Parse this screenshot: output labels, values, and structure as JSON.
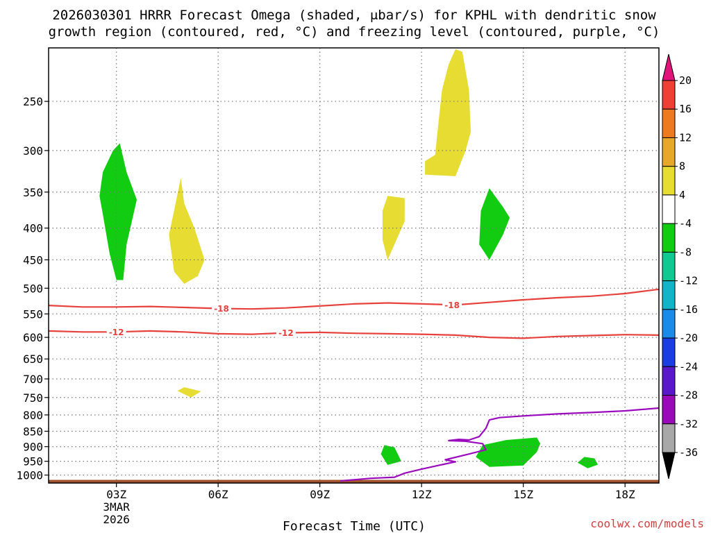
{
  "chart_data": {
    "type": "contour",
    "title_line1": "2026030301 HRRR Forecast Omega (shaded, μbar/s) for KPHL with dendritic snow",
    "title_line2": "growth region (contoured, red, °C) and freezing level (contoured, purple, °C)",
    "xlabel": "Forecast Time (UTC)",
    "credit": "coolwx.com/models",
    "x_range_hours": [
      1,
      19
    ],
    "y_axis": {
      "type": "log-pressure",
      "units": "hPa",
      "range": [
        1030,
        205
      ]
    },
    "x_ticks": [
      {
        "hour": 3,
        "label": "03Z",
        "sub1": "3MAR",
        "sub2": "2026"
      },
      {
        "hour": 6,
        "label": "06Z",
        "sub1": "",
        "sub2": ""
      },
      {
        "hour": 9,
        "label": "09Z",
        "sub1": "",
        "sub2": ""
      },
      {
        "hour": 12,
        "label": "12Z",
        "sub1": "",
        "sub2": ""
      },
      {
        "hour": 15,
        "label": "15Z",
        "sub1": "",
        "sub2": ""
      },
      {
        "hour": 18,
        "label": "18Z",
        "sub1": "",
        "sub2": ""
      }
    ],
    "y_ticks": [
      250,
      300,
      350,
      400,
      450,
      500,
      550,
      600,
      650,
      700,
      750,
      800,
      850,
      900,
      950,
      1000
    ],
    "y_tick_labels": [
      "250",
      "300",
      "350",
      "400",
      "450",
      "500",
      "550",
      "600",
      "650",
      "700",
      "750",
      "800",
      "850",
      "900",
      "950",
      "1000"
    ],
    "grid": true,
    "colorbar": {
      "placement": "right",
      "labels": [
        "20",
        "16",
        "12",
        "8",
        "4",
        "-4",
        "-8",
        "-12",
        "-16",
        "-20",
        "-24",
        "-28",
        "-32",
        "-36"
      ],
      "bins": [
        {
          "from": 20,
          "to": null,
          "color": "#e0147a"
        },
        {
          "from": 16,
          "to": 20,
          "color": "#ee4035"
        },
        {
          "from": 12,
          "to": 16,
          "color": "#ee7a20"
        },
        {
          "from": 8,
          "to": 12,
          "color": "#e6a72a"
        },
        {
          "from": 4,
          "to": 8,
          "color": "#e6dc32"
        },
        {
          "from": -4,
          "to": 4,
          "color": "#ffffff"
        },
        {
          "from": -8,
          "to": -4,
          "color": "#12cc12"
        },
        {
          "from": -12,
          "to": -8,
          "color": "#10c890"
        },
        {
          "from": -16,
          "to": -12,
          "color": "#14b4c8"
        },
        {
          "from": -20,
          "to": -16,
          "color": "#1c8ae8"
        },
        {
          "from": -24,
          "to": -20,
          "color": "#1a3ee0"
        },
        {
          "from": -28,
          "to": -24,
          "color": "#5a18c8"
        },
        {
          "from": -32,
          "to": -28,
          "color": "#9a0ab8"
        },
        {
          "from": -36,
          "to": -32,
          "color": "#a8a8a8"
        },
        {
          "from": null,
          "to": -36,
          "color": "#000000"
        }
      ]
    },
    "shaded_regions": [
      {
        "value_bin": "-8 to -4",
        "color": "#12cc12",
        "points": [
          [
            3.1,
            292
          ],
          [
            3.3,
            325
          ],
          [
            3.6,
            360
          ],
          [
            3.3,
            425
          ],
          [
            3.2,
            485
          ],
          [
            3.0,
            485
          ],
          [
            2.8,
            440
          ],
          [
            2.6,
            380
          ],
          [
            2.5,
            355
          ],
          [
            2.6,
            325
          ],
          [
            2.9,
            300
          ]
        ]
      },
      {
        "value_bin": "4 to 8",
        "color": "#e6dc32",
        "points": [
          [
            4.9,
            332
          ],
          [
            5.0,
            365
          ],
          [
            5.3,
            400
          ],
          [
            5.6,
            450
          ],
          [
            5.4,
            478
          ],
          [
            5.0,
            492
          ],
          [
            4.7,
            470
          ],
          [
            4.55,
            410
          ],
          [
            4.7,
            375
          ]
        ]
      },
      {
        "value_bin": "4 to 8",
        "color": "#e6dc32",
        "points": [
          [
            5.0,
            722
          ],
          [
            5.5,
            733
          ],
          [
            5.2,
            750
          ],
          [
            4.8,
            732
          ]
        ]
      },
      {
        "value_bin": "4 to 8",
        "color": "#e6dc32",
        "points": [
          [
            11.0,
            355
          ],
          [
            11.5,
            358
          ],
          [
            11.5,
            390
          ],
          [
            11.0,
            450
          ],
          [
            10.85,
            418
          ],
          [
            10.85,
            375
          ]
        ]
      },
      {
        "value_bin": "4 to 8",
        "color": "#e6dc32",
        "points": [
          [
            13.0,
            206
          ],
          [
            13.2,
            208
          ],
          [
            13.4,
            240
          ],
          [
            13.45,
            280
          ],
          [
            13.3,
            300
          ],
          [
            13.0,
            330
          ],
          [
            12.1,
            328
          ],
          [
            12.1,
            312
          ],
          [
            12.4,
            305
          ],
          [
            12.5,
            270
          ],
          [
            12.6,
            240
          ],
          [
            12.8,
            218
          ]
        ]
      },
      {
        "value_bin": "-8 to -4",
        "color": "#12cc12",
        "points": [
          [
            14.0,
            345
          ],
          [
            14.4,
            370
          ],
          [
            14.6,
            385
          ],
          [
            14.4,
            410
          ],
          [
            14.0,
            450
          ],
          [
            13.7,
            425
          ],
          [
            13.75,
            375
          ]
        ]
      },
      {
        "value_bin": "-8 to -4",
        "color": "#12cc12",
        "points": [
          [
            10.9,
            895
          ],
          [
            11.2,
            902
          ],
          [
            11.4,
            950
          ],
          [
            11.0,
            963
          ],
          [
            10.8,
            925
          ]
        ]
      },
      {
        "value_bin": "-8 to -4",
        "color": "#12cc12",
        "points": [
          [
            14.5,
            878
          ],
          [
            15.4,
            870
          ],
          [
            15.5,
            890
          ],
          [
            15.4,
            918
          ],
          [
            15.0,
            965
          ],
          [
            14.0,
            970
          ],
          [
            13.6,
            935
          ],
          [
            13.8,
            895
          ]
        ]
      },
      {
        "value_bin": "-8 to -4",
        "color": "#12cc12",
        "points": [
          [
            16.8,
            935
          ],
          [
            17.1,
            940
          ],
          [
            17.2,
            962
          ],
          [
            16.9,
            975
          ],
          [
            16.6,
            955
          ]
        ]
      }
    ],
    "contours": [
      {
        "variable": "temperature",
        "value": -18,
        "label": "-18",
        "color": "#e8403a",
        "points": [
          [
            1,
            533
          ],
          [
            2,
            536
          ],
          [
            3,
            536
          ],
          [
            4,
            535
          ],
          [
            5,
            537
          ],
          [
            6,
            539
          ],
          [
            7,
            540
          ],
          [
            8,
            538
          ],
          [
            9,
            534
          ],
          [
            10,
            530
          ],
          [
            11,
            528
          ],
          [
            12,
            530
          ],
          [
            13,
            532
          ],
          [
            14,
            527
          ],
          [
            15,
            522
          ],
          [
            16,
            518
          ],
          [
            17,
            515
          ],
          [
            18,
            510
          ],
          [
            19,
            502
          ]
        ],
        "labels_at": [
          [
            6.1,
            539
          ],
          [
            12.9,
            532
          ]
        ]
      },
      {
        "variable": "temperature",
        "value": -12,
        "label": "-12",
        "color": "#e8403a",
        "points": [
          [
            1,
            586
          ],
          [
            2,
            588
          ],
          [
            3,
            588
          ],
          [
            4,
            586
          ],
          [
            5,
            588
          ],
          [
            6,
            592
          ],
          [
            7,
            593
          ],
          [
            8,
            590
          ],
          [
            9,
            589
          ],
          [
            10,
            591
          ],
          [
            11,
            592
          ],
          [
            12,
            593
          ],
          [
            13,
            595
          ],
          [
            14,
            600
          ],
          [
            15,
            602
          ],
          [
            16,
            598
          ],
          [
            17,
            596
          ],
          [
            18,
            594
          ],
          [
            19,
            595
          ]
        ],
        "labels_at": [
          [
            3.0,
            588
          ],
          [
            8.0,
            590
          ]
        ]
      },
      {
        "variable": "freezing_level",
        "value": 0,
        "label": "",
        "color": "#9c0ac0",
        "points": [
          [
            9.6,
            1022
          ],
          [
            10.5,
            1012
          ],
          [
            11.2,
            1008
          ],
          [
            11.5,
            993
          ],
          [
            12.0,
            978
          ],
          [
            12.6,
            962
          ],
          [
            13.0,
            952
          ],
          [
            12.7,
            945
          ],
          [
            13.4,
            925
          ],
          [
            13.9,
            910
          ],
          [
            13.8,
            890
          ],
          [
            13.3,
            882
          ],
          [
            12.8,
            880
          ],
          [
            13.1,
            876
          ],
          [
            13.4,
            878
          ],
          [
            13.7,
            867
          ],
          [
            13.9,
            840
          ],
          [
            14.0,
            815
          ],
          [
            14.3,
            808
          ],
          [
            15.0,
            803
          ],
          [
            16.0,
            797
          ],
          [
            17.0,
            793
          ],
          [
            18.0,
            788
          ],
          [
            19.0,
            780
          ]
        ]
      }
    ],
    "terrain": {
      "color": "#a0522d",
      "pressure_top": 1018
    }
  }
}
